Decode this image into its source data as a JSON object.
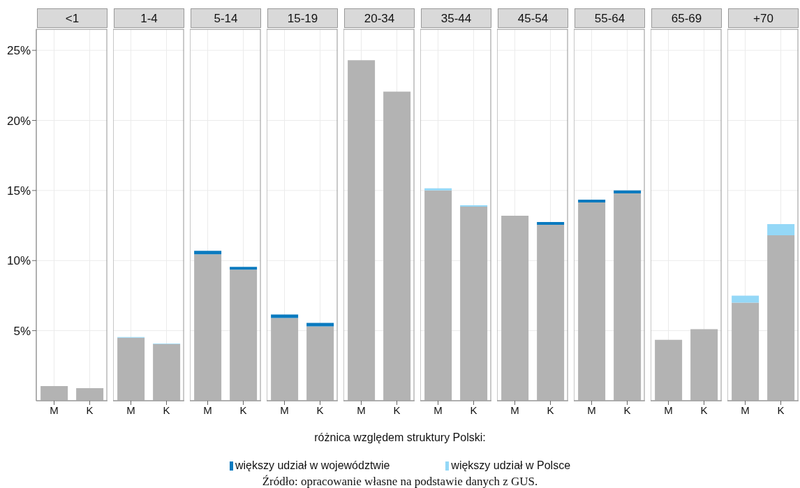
{
  "chart_data": [
    {
      "type": "bar",
      "title": "<1",
      "categories": [
        "M",
        "K"
      ],
      "stacked": true,
      "ylim": [
        0,
        26.5
      ],
      "yticks": [
        {
          "value": 5,
          "label": "5%"
        },
        {
          "value": 10,
          "label": "10%"
        },
        {
          "value": 15,
          "label": "15%"
        },
        {
          "value": 20,
          "label": "20%"
        },
        {
          "value": 25,
          "label": "25%"
        }
      ],
      "grid": true,
      "legend": "bottom",
      "legend_title": "różnica względem struktury Polski:",
      "annotations": [
        "Źródło: opracowanie własne na podstawie danych z GUS."
      ],
      "series": [
        {
          "color": "#b3b3b3",
          "values": [
            1.05,
            0.9
          ]
        },
        {
          "name": "większy udział w województwie",
          "color": "#0a7abf",
          "values": [
            null,
            null
          ]
        },
        {
          "name": "większy udział w Polsce",
          "color": "#94d8f7",
          "values": [
            null,
            null
          ]
        }
      ]
    },
    {
      "type": "bar",
      "title": "1-4",
      "categories": [
        "M",
        "K"
      ],
      "stacked": true,
      "ylim": [
        0,
        26.5
      ],
      "grid": true,
      "tick_labels": "x",
      "series": [
        {
          "color": "#b3b3b3",
          "values": [
            4.5,
            4.05
          ]
        },
        {
          "color": "#0a7abf",
          "values": [
            null,
            null
          ]
        },
        {
          "color": "#94d8f7",
          "values": [
            0.05,
            0.03
          ]
        }
      ]
    },
    {
      "type": "bar",
      "title": "5-14",
      "categories": [
        "M",
        "K"
      ],
      "stacked": true,
      "ylim": [
        0,
        26.5
      ],
      "grid": true,
      "tick_labels": "x",
      "series": [
        {
          "color": "#b3b3b3",
          "values": [
            10.45,
            9.35
          ]
        },
        {
          "color": "#0a7abf",
          "values": [
            0.25,
            0.2
          ]
        },
        {
          "color": "#94d8f7",
          "values": [
            null,
            null
          ]
        }
      ]
    },
    {
      "type": "bar",
      "title": "15-19",
      "categories": [
        "M",
        "K"
      ],
      "stacked": true,
      "ylim": [
        0,
        26.5
      ],
      "grid": true,
      "tick_labels": "x",
      "series": [
        {
          "color": "#b3b3b3",
          "values": [
            5.9,
            5.3
          ]
        },
        {
          "color": "#0a7abf",
          "values": [
            0.25,
            0.25
          ]
        },
        {
          "color": "#94d8f7",
          "values": [
            null,
            null
          ]
        }
      ]
    },
    {
      "type": "bar",
      "title": "20-34",
      "categories": [
        "M",
        "K"
      ],
      "stacked": true,
      "ylim": [
        0,
        26.5
      ],
      "grid": true,
      "tick_labels": "x",
      "series": [
        {
          "color": "#b3b3b3",
          "values": [
            24.3,
            22.05
          ]
        },
        {
          "color": "#0a7abf",
          "values": [
            null,
            null
          ]
        },
        {
          "color": "#94d8f7",
          "values": [
            null,
            null
          ]
        }
      ]
    },
    {
      "type": "bar",
      "title": "35-44",
      "categories": [
        "M",
        "K"
      ],
      "stacked": true,
      "ylim": [
        0,
        26.5
      ],
      "grid": true,
      "tick_labels": "x",
      "series": [
        {
          "color": "#b3b3b3",
          "values": [
            15.0,
            13.85
          ]
        },
        {
          "color": "#0a7abf",
          "values": [
            null,
            null
          ]
        },
        {
          "color": "#94d8f7",
          "values": [
            0.15,
            0.1
          ]
        }
      ]
    },
    {
      "type": "bar",
      "title": "45-54",
      "categories": [
        "M",
        "K"
      ],
      "stacked": true,
      "ylim": [
        0,
        26.5
      ],
      "grid": true,
      "tick_labels": "x",
      "series": [
        {
          "color": "#b3b3b3",
          "values": [
            13.2,
            12.55
          ]
        },
        {
          "color": "#0a7abf",
          "values": [
            null,
            0.2
          ]
        },
        {
          "color": "#94d8f7",
          "values": [
            null,
            null
          ]
        }
      ]
    },
    {
      "type": "bar",
      "title": "55-64",
      "categories": [
        "M",
        "K"
      ],
      "stacked": true,
      "ylim": [
        0,
        26.5
      ],
      "grid": true,
      "tick_labels": "x",
      "series": [
        {
          "color": "#b3b3b3",
          "values": [
            14.15,
            14.8
          ]
        },
        {
          "color": "#0a7abf",
          "values": [
            0.2,
            0.2
          ]
        },
        {
          "color": "#94d8f7",
          "values": [
            null,
            null
          ]
        }
      ]
    },
    {
      "type": "bar",
      "title": "65-69",
      "categories": [
        "M",
        "K"
      ],
      "stacked": true,
      "ylim": [
        0,
        26.5
      ],
      "grid": true,
      "tick_labels": "x",
      "series": [
        {
          "color": "#b3b3b3",
          "values": [
            4.35,
            5.1
          ]
        },
        {
          "color": "#0a7abf",
          "values": [
            null,
            null
          ]
        },
        {
          "color": "#94d8f7",
          "values": [
            null,
            null
          ]
        }
      ]
    },
    {
      "type": "bar",
      "title": "+70",
      "categories": [
        "M",
        "K"
      ],
      "stacked": true,
      "ylim": [
        0,
        26.5
      ],
      "grid": true,
      "tick_labels": "x",
      "series": [
        {
          "color": "#b3b3b3",
          "values": [
            7.0,
            11.8
          ]
        },
        {
          "color": "#0a7abf",
          "values": [
            null,
            null
          ]
        },
        {
          "color": "#94d8f7",
          "values": [
            0.5,
            0.8
          ]
        }
      ]
    }
  ]
}
